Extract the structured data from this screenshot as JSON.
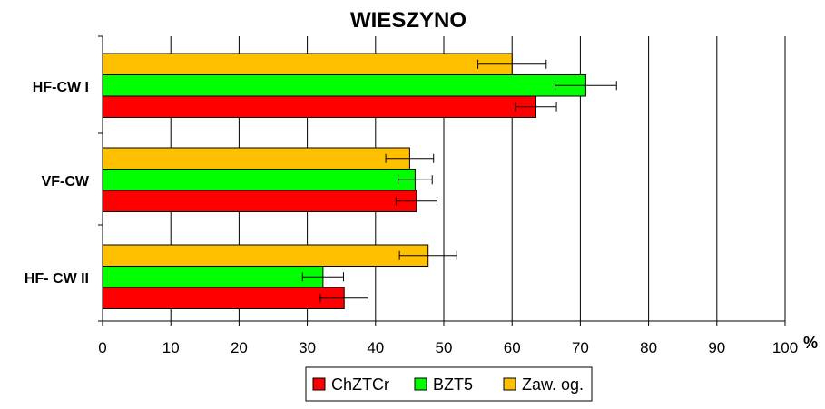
{
  "chart_data": {
    "type": "bar",
    "orientation": "horizontal",
    "title": "WIESZYNO",
    "xlabel": "%",
    "ylabel": "",
    "xlim": [
      0,
      100
    ],
    "ticks": [
      "0",
      "10",
      "20",
      "30",
      "40",
      "50",
      "60",
      "70",
      "80",
      "90",
      "100"
    ],
    "categories": [
      "HF-CW I",
      "VF-CW",
      "HF- CW II"
    ],
    "series": [
      {
        "name": "Zaw. og.",
        "color": "#FFC000",
        "values": [
          60.0,
          45.0,
          47.7
        ],
        "errors": [
          5.0,
          3.5,
          4.2
        ]
      },
      {
        "name": "BZT5",
        "color": "#00FF00",
        "values": [
          70.8,
          45.8,
          32.3
        ],
        "errors": [
          4.5,
          2.5,
          3.0
        ]
      },
      {
        "name": "ChZTCr",
        "color": "#FF0000",
        "values": [
          63.5,
          46.0,
          35.4
        ],
        "errors": [
          3.0,
          3.0,
          3.5
        ]
      }
    ],
    "legend": {
      "position": "bottom",
      "entries": [
        {
          "name": "ChZTCr",
          "color": "#FF0000"
        },
        {
          "name": "BZT5",
          "color": "#00FF00"
        },
        {
          "name": "Zaw. og.",
          "color": "#FFC000"
        }
      ]
    },
    "grid": "vertical"
  }
}
